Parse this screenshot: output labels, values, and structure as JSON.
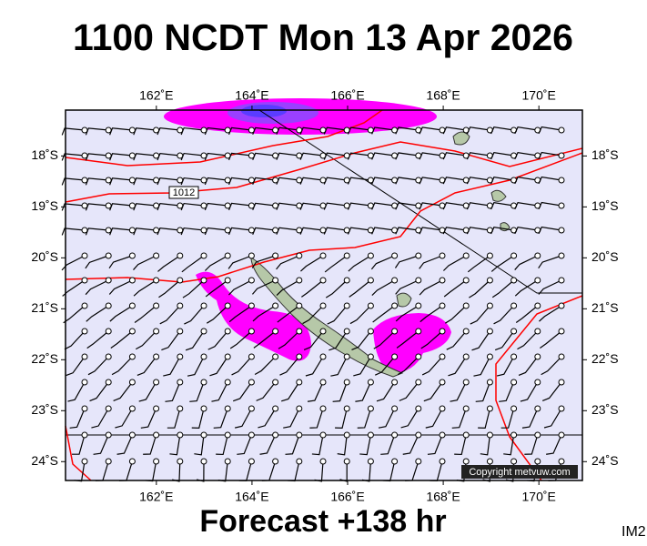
{
  "map": {
    "title": "1100 NCDT Mon 13 Apr 2026",
    "footer": "Forecast +138 hr",
    "corner_label": "IM2",
    "copyright": "Copyright metvuw.com",
    "isobar_label": "1012",
    "lonlim": [
      160.1,
      170.91
    ],
    "latlim": [
      -17.1,
      -24.37
    ],
    "lon_ticks": [
      {
        "value": 162,
        "label": "162˚E"
      },
      {
        "value": 164,
        "label": "164˚E"
      },
      {
        "value": 166,
        "label": "166˚E"
      },
      {
        "value": 168,
        "label": "168˚E"
      },
      {
        "value": 170,
        "label": "170˚E"
      }
    ],
    "lat_ticks": [
      {
        "value": -18,
        "label": "18˚S"
      },
      {
        "value": -19,
        "label": "19˚S"
      },
      {
        "value": -20,
        "label": "20˚S"
      },
      {
        "value": -21,
        "label": "21˚S"
      },
      {
        "value": -22,
        "label": "22˚S"
      },
      {
        "value": -23,
        "label": "23˚S"
      },
      {
        "value": -24,
        "label": "24˚S"
      }
    ]
  }
}
